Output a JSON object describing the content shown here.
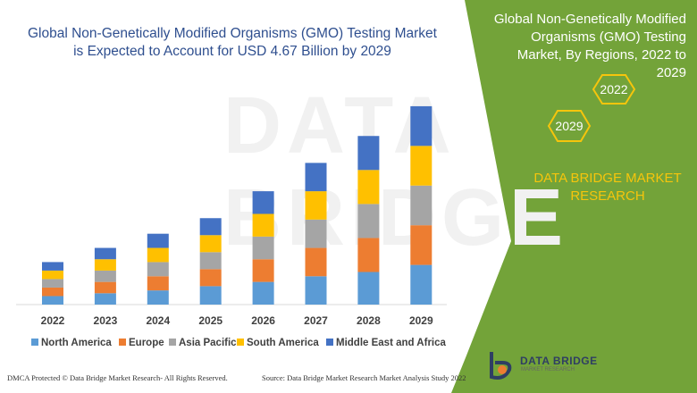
{
  "title": "Global Non-Genetically Modified Organisms (GMO) Testing Market is Expected to Account for USD 4.67 Billion by 2029",
  "panel": {
    "title": "Global Non-Genetically Modified Organisms (GMO) Testing Market, By Regions, 2022 to 2029",
    "badge_start": "2022",
    "badge_end": "2029",
    "brand": "DATA BRIDGE MARKET RESEARCH"
  },
  "footer": {
    "left": "DMCA Protected © Data Bridge Market Research- All Rights Reserved.",
    "right": "Source: Data Bridge Market Research Market Analysis Study 2022"
  },
  "logo": {
    "name": "DATA BRIDGE",
    "tagline": "MARKET RESEARCH"
  },
  "watermark": "DATA BRIDGE",
  "colors": {
    "panel_green": "#73a339",
    "badge_yellow": "#f6c50c",
    "title_blue": "#2f4f8f"
  },
  "chart_data": {
    "type": "bar",
    "stacked": true,
    "categories": [
      "2022",
      "2023",
      "2024",
      "2025",
      "2026",
      "2027",
      "2028",
      "2029"
    ],
    "series": [
      {
        "name": "North America",
        "color": "#5b9bd5",
        "values": [
          0.6,
          0.8,
          1.0,
          1.3,
          1.6,
          2.0,
          2.3,
          2.8
        ]
      },
      {
        "name": "Europe",
        "color": "#ed7d31",
        "values": [
          0.6,
          0.8,
          1.0,
          1.2,
          1.6,
          2.0,
          2.4,
          2.8
        ]
      },
      {
        "name": "Asia Pacific",
        "color": "#a5a5a5",
        "values": [
          0.6,
          0.8,
          1.0,
          1.2,
          1.6,
          2.0,
          2.4,
          2.8
        ]
      },
      {
        "name": "South America",
        "color": "#ffc000",
        "values": [
          0.6,
          0.8,
          1.0,
          1.2,
          1.6,
          2.0,
          2.4,
          2.8
        ]
      },
      {
        "name": "Middle East and Africa",
        "color": "#4472c4",
        "values": [
          0.6,
          0.8,
          1.0,
          1.2,
          1.6,
          2.0,
          2.4,
          2.8
        ]
      }
    ],
    "legend_position": "bottom",
    "grid": false,
    "ylim": [
      0,
      14.5
    ]
  }
}
